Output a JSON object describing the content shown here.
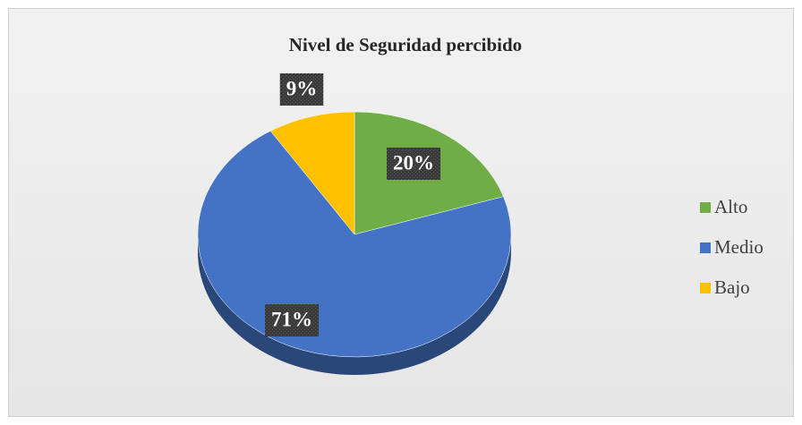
{
  "chart_data": {
    "type": "pie3d",
    "title": "Nivel de Seguridad percibido",
    "categories": [
      "Alto",
      "Medio",
      "Bajo"
    ],
    "values": [
      20,
      71,
      9
    ],
    "value_labels": [
      "20%",
      "71%",
      "9%"
    ],
    "colors": [
      "#70ad47",
      "#4472c4",
      "#ffc000"
    ],
    "legend": "right"
  }
}
